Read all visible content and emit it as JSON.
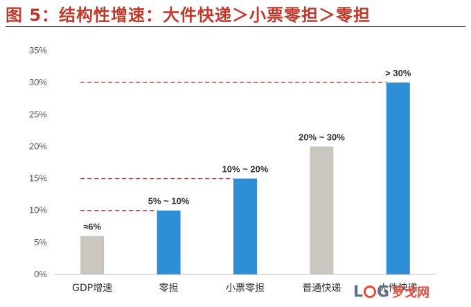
{
  "figure_title": "图 5：结构性增速：大件快递＞小票零担＞零担",
  "watermark": {
    "logo": "LOG",
    "text": "罗戈网"
  },
  "chart_data": {
    "type": "bar",
    "categories": [
      "GDP增速",
      "零担",
      "小票零担",
      "普通快递",
      "大件快递"
    ],
    "values": [
      6,
      10,
      15,
      20,
      30
    ],
    "data_labels": [
      "≈6%",
      "5% ~ 10%",
      "10% ~ 20%",
      "20% ~ 30%",
      "> 30%"
    ],
    "bar_colors": [
      "#c9c5bf",
      "#2f8fd6",
      "#2f8fd6",
      "#c9c5bf",
      "#2f8fd6"
    ],
    "ylim": [
      0,
      35
    ],
    "yticks": [
      0,
      5,
      10,
      15,
      20,
      25,
      30,
      35
    ],
    "ytick_labels": [
      "0%",
      "5%",
      "10%",
      "15%",
      "20%",
      "25%",
      "30%",
      "35%"
    ],
    "reference_lines": [
      {
        "y": 10,
        "from_category": 0,
        "to_category": 1,
        "color": "#e0302a"
      },
      {
        "y": 15,
        "from_category": 0,
        "to_category": 2,
        "color": "#e0302a"
      },
      {
        "y": 30,
        "from_category": 0,
        "to_category": 4,
        "color": "#e0302a"
      }
    ],
    "xlabel": "",
    "ylabel": "",
    "grid": false,
    "legend": "none"
  }
}
